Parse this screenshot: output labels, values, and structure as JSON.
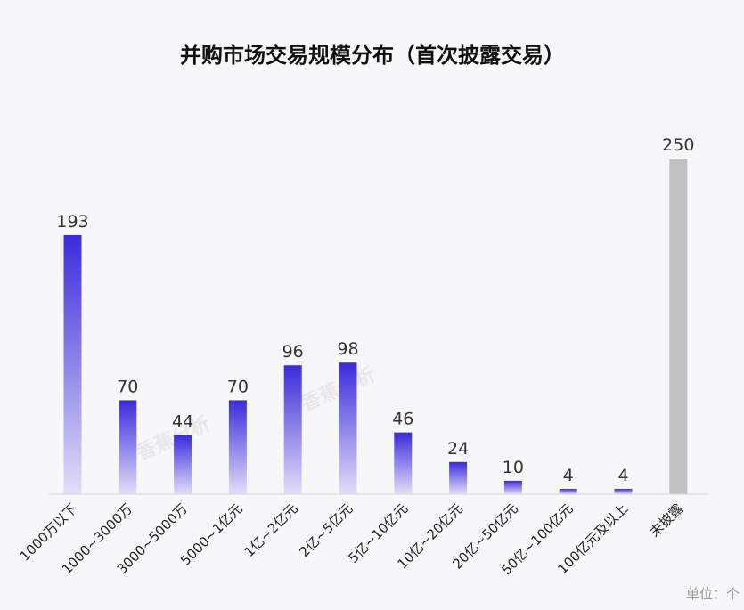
{
  "chart_data": {
    "type": "bar",
    "title": "并购市场交易规模分布（首次披露交易）",
    "categories": [
      "1000万以下",
      "1000~3000万",
      "3000~5000万",
      "5000~1亿元",
      "1亿~2亿元",
      "2亿~5亿元",
      "5亿~10亿元",
      "10亿~20亿元",
      "20亿~50亿元",
      "50亿~100亿元",
      "100亿元及以上",
      "未披露"
    ],
    "values": [
      193,
      70,
      44,
      70,
      96,
      98,
      46,
      24,
      10,
      4,
      4,
      250
    ],
    "unit_label": "单位：个",
    "watermark": "香蕉分析",
    "ylim": [
      0,
      250
    ],
    "grid": false,
    "legend": "none",
    "colors": {
      "bar_top": "#3b2bdc",
      "bar_bottom": "#e2dff7",
      "undisclosed": "#c0c0c0",
      "axis": "#d6d6d6"
    }
  }
}
